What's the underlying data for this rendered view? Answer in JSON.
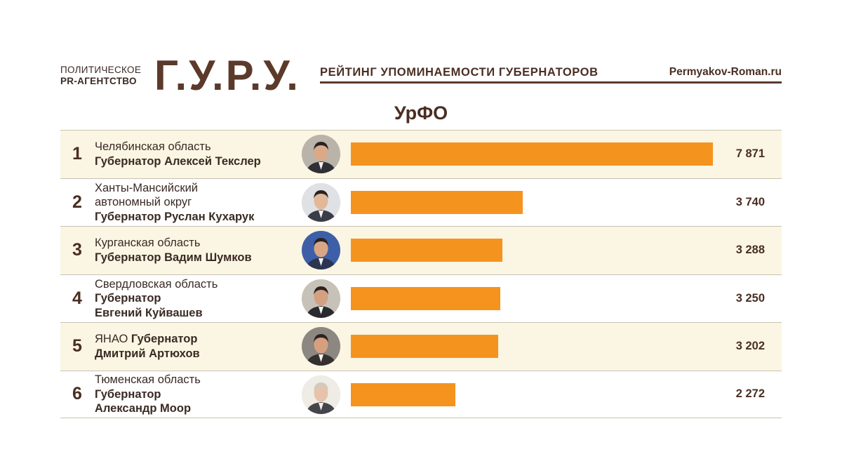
{
  "header": {
    "agency_line1": "ПОЛИТИЧЕСКОЕ",
    "agency_line2": "PR-АГЕНТСТВО",
    "logo": "Г.У.Р.У.",
    "tagline": "РЕЙТИНГ УПОМИНАЕМОСТИ ГУБЕРНАТОРОВ",
    "site": "Permyakov-Roman.ru"
  },
  "region_title": "УрФО",
  "colors": {
    "bar": "#f5931f",
    "text": "#4a2e22",
    "stripe": "#fbf6e3"
  },
  "chart_data": {
    "type": "bar",
    "orientation": "horizontal",
    "title": "УрФО",
    "xlim": [
      0,
      7871
    ],
    "rows": [
      {
        "rank": "1",
        "text_lines": [
          {
            "t": "Челябинская область",
            "b": false
          },
          {
            "t": "Губернатор Алексей Текслер",
            "b": true
          }
        ],
        "label": "7 871",
        "value": 7871,
        "avatar": "avatar-teksler"
      },
      {
        "rank": "2",
        "text_lines": [
          {
            "t": "Ханты-Мансийский",
            "b": false
          },
          {
            "t": "автономный округ",
            "b": false
          },
          {
            "t": "Губернатор Руслан Кухарук",
            "b": true
          }
        ],
        "label": "3 740",
        "value": 3740,
        "avatar": "avatar-kukharuk"
      },
      {
        "rank": "3",
        "text_lines": [
          {
            "t": "Курганская область",
            "b": false
          },
          {
            "t": "Губернатор Вадим Шумков",
            "b": true
          }
        ],
        "label": "3 288",
        "value": 3288,
        "avatar": "avatar-shumkov"
      },
      {
        "rank": "4",
        "text_lines": [
          {
            "t": "Свердловская область",
            "b": false
          },
          {
            "t": "Губернатор",
            "b": true
          },
          {
            "t": "Евгений Куйвашев",
            "b": true
          }
        ],
        "label": "3 250",
        "value": 3250,
        "avatar": "avatar-kuyvashev"
      },
      {
        "rank": "5",
        "text_lines": [
          {
            "t": "ЯНАО ",
            "b": false,
            "inline": true
          },
          {
            "t": "Губернатор",
            "b": true,
            "inline": true
          },
          {
            "t": "Дмитрий Артюхов",
            "b": true
          }
        ],
        "label": "3 202",
        "value": 3202,
        "avatar": "avatar-artyukhov"
      },
      {
        "rank": "6",
        "text_lines": [
          {
            "t": "Тюменская область",
            "b": false
          },
          {
            "t": "Губернатор",
            "b": true
          },
          {
            "t": "Александр Моор",
            "b": true
          }
        ],
        "label": "2 272",
        "value": 2272,
        "avatar": "avatar-moor"
      }
    ]
  }
}
